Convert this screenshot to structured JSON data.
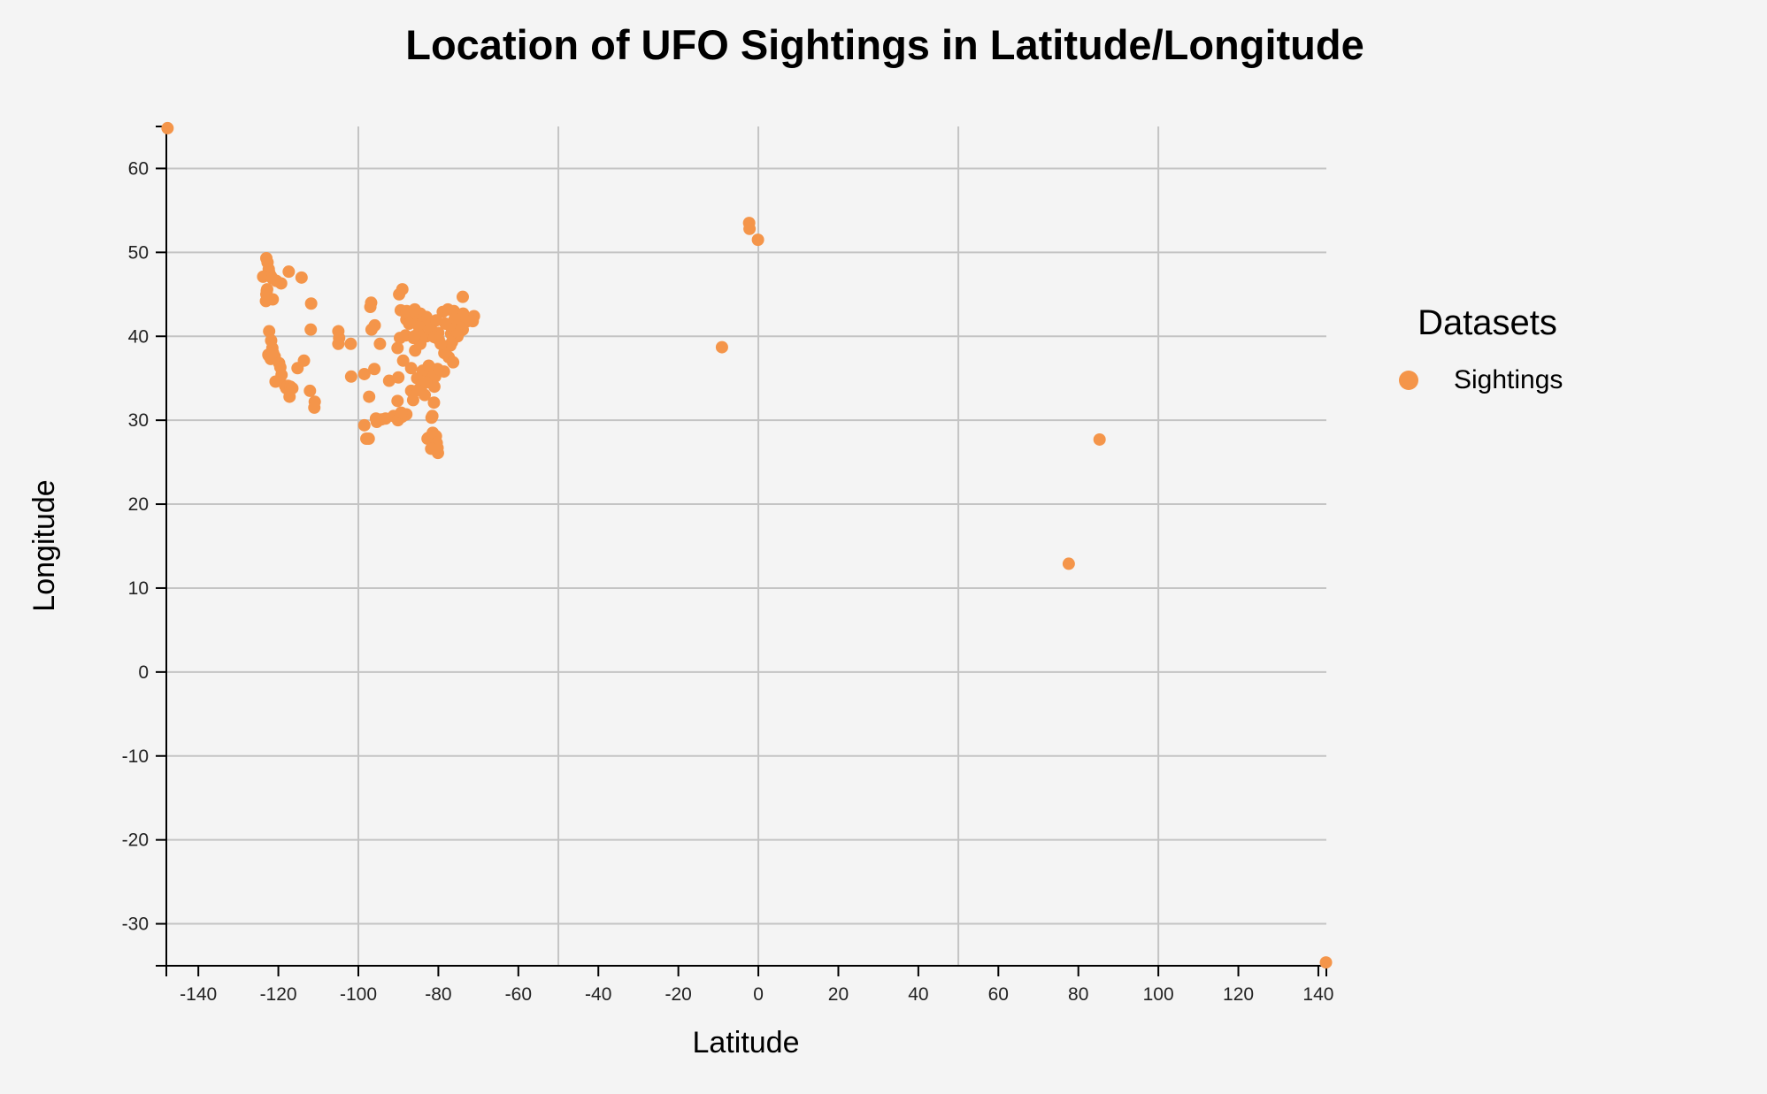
{
  "chart_data": {
    "type": "scatter",
    "title": "Location of UFO Sightings in Latitude/Longitude",
    "xlabel": "Latitude",
    "ylabel": "Longitude",
    "xlim": [
      -148,
      142
    ],
    "ylim": [
      -35,
      65
    ],
    "x_ticks": [
      -140,
      -120,
      -100,
      -80,
      -60,
      -40,
      -20,
      0,
      20,
      40,
      60,
      80,
      100,
      120,
      140
    ],
    "y_ticks": [
      -30,
      -20,
      -10,
      0,
      10,
      20,
      30,
      40,
      50,
      60
    ],
    "x_grid": [
      -100,
      -50,
      0,
      50,
      100
    ],
    "y_grid": [
      -30,
      -20,
      -10,
      0,
      10,
      20,
      30,
      40,
      50,
      60
    ],
    "grid": true,
    "legend_title": "Datasets",
    "legend_position": "right",
    "series": [
      {
        "name": "Sightings",
        "color": "#f4954a",
        "points": [
          [
            -147.7,
            64.8
          ],
          [
            141.9,
            -34.6
          ],
          [
            -123.0,
            49.3
          ],
          [
            -122.7,
            48.8
          ],
          [
            -122.4,
            48.0
          ],
          [
            -122.3,
            47.6
          ],
          [
            -123.8,
            47.1
          ],
          [
            -121.9,
            47.2
          ],
          [
            -121.5,
            46.9
          ],
          [
            -120.5,
            46.6
          ],
          [
            -119.3,
            46.3
          ],
          [
            -117.4,
            47.7
          ],
          [
            -114.2,
            47.0
          ],
          [
            -122.8,
            45.6
          ],
          [
            -123.0,
            45.0
          ],
          [
            -122.9,
            45.4
          ],
          [
            -121.4,
            44.4
          ],
          [
            -123.1,
            44.2
          ],
          [
            -111.8,
            43.9
          ],
          [
            -111.9,
            40.8
          ],
          [
            -122.3,
            40.6
          ],
          [
            -121.8,
            39.5
          ],
          [
            -121.5,
            38.6
          ],
          [
            -122.5,
            37.8
          ],
          [
            -122.4,
            37.7
          ],
          [
            -121.9,
            37.3
          ],
          [
            -121.3,
            38.0
          ],
          [
            -120.9,
            37.6
          ],
          [
            -119.8,
            36.8
          ],
          [
            -119.5,
            36.3
          ],
          [
            -119.2,
            35.4
          ],
          [
            -120.7,
            34.6
          ],
          [
            -118.3,
            34.1
          ],
          [
            -118.0,
            33.8
          ],
          [
            -117.6,
            34.1
          ],
          [
            -117.2,
            32.8
          ],
          [
            -117.0,
            34.0
          ],
          [
            -116.5,
            33.8
          ],
          [
            -115.2,
            36.2
          ],
          [
            -113.6,
            37.1
          ],
          [
            -112.1,
            33.5
          ],
          [
            -110.9,
            32.2
          ],
          [
            -111.0,
            31.5
          ],
          [
            -105.0,
            40.6
          ],
          [
            -104.8,
            39.8
          ],
          [
            -105.0,
            39.1
          ],
          [
            -101.8,
            35.2
          ],
          [
            -101.9,
            39.1
          ],
          [
            -98.5,
            35.5
          ],
          [
            -97.3,
            32.8
          ],
          [
            -98.5,
            29.4
          ],
          [
            -95.4,
            29.8
          ],
          [
            -94.2,
            30.1
          ],
          [
            -93.2,
            30.2
          ],
          [
            -91.2,
            30.5
          ],
          [
            -90.1,
            30.0
          ],
          [
            -89.1,
            30.4
          ],
          [
            -90.2,
            32.3
          ],
          [
            -92.3,
            34.7
          ],
          [
            -94.6,
            39.1
          ],
          [
            -95.9,
            41.3
          ],
          [
            -96.7,
            40.8
          ],
          [
            -97.0,
            43.5
          ],
          [
            -96.8,
            44.0
          ],
          [
            -90.2,
            38.6
          ],
          [
            -89.6,
            39.8
          ],
          [
            -88.2,
            40.1
          ],
          [
            -87.6,
            41.9
          ],
          [
            -88.0,
            42.0
          ],
          [
            -89.4,
            43.1
          ],
          [
            -89.8,
            45.0
          ],
          [
            -89.0,
            45.6
          ],
          [
            -87.9,
            43.0
          ],
          [
            -86.2,
            41.7
          ],
          [
            -85.7,
            42.9
          ],
          [
            -84.5,
            42.7
          ],
          [
            -83.0,
            42.3
          ],
          [
            -83.7,
            41.7
          ],
          [
            -86.2,
            39.8
          ],
          [
            -85.8,
            38.3
          ],
          [
            -84.5,
            39.1
          ],
          [
            -83.0,
            40.0
          ],
          [
            -84.2,
            39.8
          ],
          [
            -81.7,
            41.5
          ],
          [
            -80.0,
            40.4
          ],
          [
            -78.9,
            42.9
          ],
          [
            -77.6,
            43.2
          ],
          [
            -76.1,
            43.0
          ],
          [
            -73.8,
            42.7
          ],
          [
            -73.9,
            44.7
          ],
          [
            -71.1,
            42.4
          ],
          [
            -71.4,
            41.8
          ],
          [
            -72.7,
            41.8
          ],
          [
            -73.9,
            40.8
          ],
          [
            -74.2,
            40.7
          ],
          [
            -75.2,
            40.0
          ],
          [
            -76.6,
            39.3
          ],
          [
            -77.0,
            38.9
          ],
          [
            -77.4,
            37.5
          ],
          [
            -76.3,
            36.9
          ],
          [
            -78.6,
            35.8
          ],
          [
            -80.8,
            35.2
          ],
          [
            -80.2,
            36.1
          ],
          [
            -82.6,
            35.6
          ],
          [
            -84.4,
            33.8
          ],
          [
            -83.4,
            33.0
          ],
          [
            -81.0,
            34.0
          ],
          [
            -81.1,
            32.1
          ],
          [
            -81.7,
            30.3
          ],
          [
            -81.4,
            28.5
          ],
          [
            -82.5,
            27.9
          ],
          [
            -82.7,
            27.8
          ],
          [
            -81.2,
            28.0
          ],
          [
            -80.6,
            28.1
          ],
          [
            -80.1,
            26.1
          ],
          [
            -80.2,
            26.7
          ],
          [
            -80.4,
            27.3
          ],
          [
            -81.8,
            26.6
          ],
          [
            -81.5,
            30.5
          ],
          [
            -86.8,
            33.5
          ],
          [
            -86.3,
            32.4
          ],
          [
            -88.0,
            30.7
          ],
          [
            -89.3,
            30.9
          ],
          [
            -82.0,
            40.8
          ],
          [
            -81.0,
            39.9
          ],
          [
            -79.9,
            39.6
          ],
          [
            -78.5,
            38.0
          ],
          [
            -79.4,
            39.1
          ],
          [
            -83.9,
            35.9
          ],
          [
            -86.8,
            36.2
          ],
          [
            -85.3,
            35.0
          ],
          [
            -90.0,
            35.1
          ],
          [
            -88.8,
            37.1
          ],
          [
            -84.8,
            41.1
          ],
          [
            -85.1,
            40.3
          ],
          [
            -86.0,
            40.0
          ],
          [
            -87.3,
            41.5
          ],
          [
            -85.9,
            43.2
          ],
          [
            -76.8,
            40.3
          ],
          [
            -75.5,
            40.6
          ],
          [
            -74.7,
            41.5
          ],
          [
            -73.2,
            42.0
          ],
          [
            -72.5,
            42.1
          ],
          [
            -74.0,
            42.5
          ],
          [
            -75.9,
            42.1
          ],
          [
            -77.1,
            41.3
          ],
          [
            -78.2,
            41.5
          ],
          [
            -80.5,
            41.9
          ],
          [
            -82.4,
            36.5
          ],
          [
            -84.2,
            34.2
          ],
          [
            -85.0,
            33.6
          ],
          [
            -83.0,
            34.5
          ],
          [
            -98.0,
            27.8
          ],
          [
            -97.4,
            27.8
          ],
          [
            -96.0,
            36.1
          ],
          [
            -95.6,
            30.2
          ],
          [
            -2.3,
            53.5
          ],
          [
            -2.2,
            52.8
          ],
          [
            -0.1,
            51.5
          ],
          [
            -9.1,
            38.7
          ],
          [
            85.3,
            27.7
          ],
          [
            77.6,
            12.9
          ]
        ]
      }
    ]
  }
}
